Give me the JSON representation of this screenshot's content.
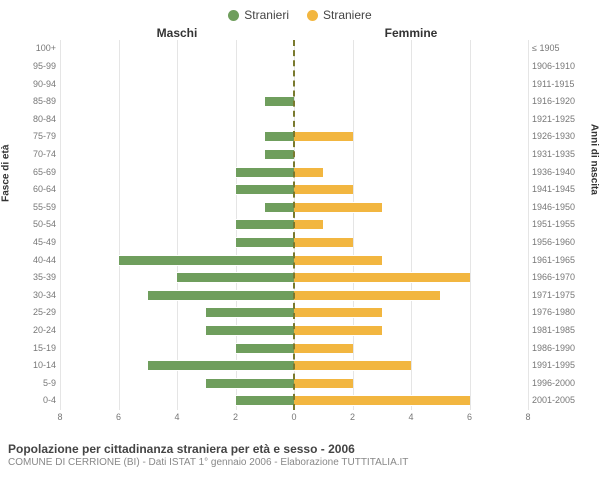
{
  "chart": {
    "type": "population_pyramid",
    "legend": {
      "male": {
        "label": "Stranieri",
        "color": "#6f9e5d"
      },
      "female": {
        "label": "Straniere",
        "color": "#f2b640"
      }
    },
    "column_headers": {
      "left": "Maschi",
      "right": "Femmine"
    },
    "y_left_title": "Fasce di età",
    "y_right_title": "Anni di nascita",
    "x_max": 8,
    "x_ticks": [
      8,
      6,
      4,
      2,
      0,
      2,
      4,
      6,
      8
    ],
    "grid_color": "#e5e5e5",
    "center_line_color": "#7a7a2e",
    "bar_border": "#ffffff",
    "age_labels": [
      "100+",
      "95-99",
      "90-94",
      "85-89",
      "80-84",
      "75-79",
      "70-74",
      "65-69",
      "60-64",
      "55-59",
      "50-54",
      "45-49",
      "40-44",
      "35-39",
      "30-34",
      "25-29",
      "20-24",
      "15-19",
      "10-14",
      "5-9",
      "0-4"
    ],
    "birth_labels": [
      "≤ 1905",
      "1906-1910",
      "1911-1915",
      "1916-1920",
      "1921-1925",
      "1926-1930",
      "1931-1935",
      "1936-1940",
      "1941-1945",
      "1946-1950",
      "1951-1955",
      "1956-1960",
      "1961-1965",
      "1966-1970",
      "1971-1975",
      "1976-1980",
      "1981-1985",
      "1986-1990",
      "1991-1995",
      "1996-2000",
      "2001-2005"
    ],
    "male_values": [
      0,
      0,
      0,
      1,
      0,
      1,
      1,
      2,
      2,
      1,
      2,
      2,
      6,
      4,
      5,
      3,
      3,
      2,
      5,
      3,
      2
    ],
    "female_values": [
      0,
      0,
      0,
      0,
      0,
      2,
      0,
      1,
      2,
      3,
      1,
      2,
      3,
      6,
      5,
      3,
      3,
      2,
      4,
      2,
      6
    ]
  },
  "caption": {
    "title": "Popolazione per cittadinanza straniera per età e sesso - 2006",
    "subtitle": "COMUNE DI CERRIONE (BI) - Dati ISTAT 1° gennaio 2006 - Elaborazione TUTTITALIA.IT"
  }
}
